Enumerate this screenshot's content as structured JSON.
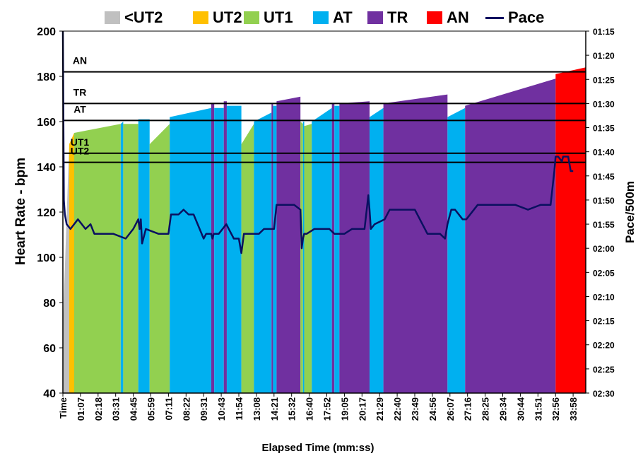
{
  "chart_data": {
    "type": "area",
    "title": "",
    "xlabel": "Elapsed Time (mm:ss)",
    "ylabel": "Heart Rate - bpm",
    "y2label": "Pace/500m",
    "ylim": [
      40,
      200
    ],
    "yticks": [
      40,
      60,
      80,
      100,
      120,
      140,
      160,
      180,
      200
    ],
    "y2ticks": [
      "01:15",
      "01:20",
      "01:25",
      "01:30",
      "01:35",
      "01:40",
      "01:45",
      "01:50",
      "01:55",
      "02:00",
      "02:05",
      "02:10",
      "02:15",
      "02:20",
      "02:25",
      "02:30"
    ],
    "y2lim_seconds": [
      75,
      150
    ],
    "xlim_seconds": [
      0,
      2080
    ],
    "xticks": [
      "Time",
      "01:07",
      "02:18",
      "03:31",
      "04:45",
      "05:59",
      "07:11",
      "08:22",
      "09:31",
      "10:43",
      "11:54",
      "13:08",
      "14:21",
      "15:32",
      "16:40",
      "17:52",
      "19:05",
      "20:17",
      "21:29",
      "22:40",
      "23:49",
      "24:56",
      "26:07",
      "27:16",
      "28:25",
      "29:34",
      "30:44",
      "31:51",
      "32:56",
      "33:58"
    ],
    "legend": [
      {
        "name": "<UT2",
        "color": "#c0c0c0",
        "kind": "area"
      },
      {
        "name": "UT2",
        "color": "#ffc000",
        "kind": "area"
      },
      {
        "name": "UT1",
        "color": "#92d050",
        "kind": "area"
      },
      {
        "name": "AT",
        "color": "#00b0f0",
        "kind": "area"
      },
      {
        "name": "TR",
        "color": "#7030a0",
        "kind": "area"
      },
      {
        "name": "AN",
        "color": "#ff0000",
        "kind": "area"
      },
      {
        "name": "Pace",
        "color": "#0a1060",
        "kind": "line"
      }
    ],
    "legend_position": "top",
    "zone_thresholds": [
      {
        "label": "UT2",
        "hr": 142
      },
      {
        "label": "UT1",
        "hr": 146
      },
      {
        "label": "AT",
        "hr": 160.5
      },
      {
        "label": "TR",
        "hr": 168
      },
      {
        "label": "AN",
        "hr": 182
      }
    ],
    "heart_rate_segments": [
      {
        "zone": "<UT2",
        "x0": 0,
        "x1": 25,
        "hr0": 70,
        "hr1": 150
      },
      {
        "zone": "UT2",
        "x0": 25,
        "x1": 45,
        "hr0": 150,
        "hr1": 155
      },
      {
        "zone": "UT1",
        "x0": 45,
        "x1": 230,
        "hr0": 155,
        "hr1": 159
      },
      {
        "zone": "AT",
        "x0": 230,
        "x1": 240,
        "hr0": 159,
        "hr1": 160
      },
      {
        "zone": "UT1",
        "x0": 240,
        "x1": 300,
        "hr0": 159,
        "hr1": 159
      },
      {
        "zone": "AT",
        "x0": 300,
        "x1": 345,
        "hr0": 161,
        "hr1": 161
      },
      {
        "zone": "UT1",
        "x0": 345,
        "x1": 425,
        "hr0": 150,
        "hr1": 159
      },
      {
        "zone": "AT",
        "x0": 425,
        "x1": 590,
        "hr0": 162,
        "hr1": 166
      },
      {
        "zone": "TR",
        "x0": 590,
        "x1": 602,
        "hr0": 168,
        "hr1": 168
      },
      {
        "zone": "AT",
        "x0": 602,
        "x1": 640,
        "hr0": 166,
        "hr1": 166
      },
      {
        "zone": "TR",
        "x0": 640,
        "x1": 652,
        "hr0": 169,
        "hr1": 169
      },
      {
        "zone": "AT",
        "x0": 652,
        "x1": 710,
        "hr0": 167,
        "hr1": 167
      },
      {
        "zone": "UT1",
        "x0": 710,
        "x1": 760,
        "hr0": 150,
        "hr1": 159
      },
      {
        "zone": "AT",
        "x0": 760,
        "x1": 830,
        "hr0": 160,
        "hr1": 164
      },
      {
        "zone": "TR",
        "x0": 830,
        "x1": 836,
        "hr0": 168,
        "hr1": 168
      },
      {
        "zone": "AT",
        "x0": 836,
        "x1": 850,
        "hr0": 167,
        "hr1": 167
      },
      {
        "zone": "TR",
        "x0": 850,
        "x1": 945,
        "hr0": 169,
        "hr1": 171
      },
      {
        "zone": "UT1",
        "x0": 945,
        "x1": 955,
        "hr0": 160,
        "hr1": 159
      },
      {
        "zone": "AT",
        "x0": 955,
        "x1": 960,
        "hr0": 160,
        "hr1": 160
      },
      {
        "zone": "UT1",
        "x0": 960,
        "x1": 990,
        "hr0": 158,
        "hr1": 159
      },
      {
        "zone": "AT",
        "x0": 990,
        "x1": 1070,
        "hr0": 160,
        "hr1": 166
      },
      {
        "zone": "TR",
        "x0": 1070,
        "x1": 1080,
        "hr0": 168,
        "hr1": 168
      },
      {
        "zone": "AT",
        "x0": 1080,
        "x1": 1100,
        "hr0": 167,
        "hr1": 167
      },
      {
        "zone": "TR",
        "x0": 1100,
        "x1": 1220,
        "hr0": 168,
        "hr1": 169
      },
      {
        "zone": "AT",
        "x0": 1220,
        "x1": 1275,
        "hr0": 162,
        "hr1": 166
      },
      {
        "zone": "TR",
        "x0": 1275,
        "x1": 1530,
        "hr0": 168,
        "hr1": 172
      },
      {
        "zone": "AT",
        "x0": 1530,
        "x1": 1600,
        "hr0": 162,
        "hr1": 166
      },
      {
        "zone": "TR",
        "x0": 1600,
        "x1": 1960,
        "hr0": 167,
        "hr1": 179
      },
      {
        "zone": "AN",
        "x0": 1960,
        "x1": 2080,
        "hr0": 181,
        "hr1": 184
      }
    ],
    "pace_seconds": {
      "x": [
        0,
        4,
        8,
        15,
        30,
        60,
        90,
        110,
        125,
        200,
        250,
        280,
        300,
        305,
        310,
        315,
        330,
        380,
        390,
        420,
        430,
        460,
        480,
        500,
        520,
        560,
        570,
        590,
        595,
        600,
        620,
        650,
        660,
        680,
        700,
        710,
        720,
        780,
        800,
        840,
        850,
        880,
        920,
        945,
        950,
        955,
        960,
        970,
        1000,
        1030,
        1060,
        1080,
        1120,
        1150,
        1200,
        1215,
        1220,
        1225,
        1240,
        1280,
        1300,
        1320,
        1400,
        1450,
        1500,
        1520,
        1530,
        1535,
        1545,
        1560,
        1590,
        1605,
        1650,
        1700,
        1750,
        1800,
        1850,
        1900,
        1940,
        1955,
        1960,
        1970,
        1985,
        1990,
        2000,
        2010,
        2020,
        2030
      ],
      "y": [
        75,
        110,
        113,
        115,
        116,
        114,
        116,
        115,
        117,
        117,
        118,
        116,
        114,
        116,
        114,
        119,
        116,
        117,
        117,
        117,
        113,
        113,
        112,
        113,
        113,
        118,
        117,
        117,
        118,
        117,
        117,
        115,
        116,
        118,
        118,
        121,
        117,
        117,
        116,
        116,
        111,
        111,
        111,
        112,
        120,
        118,
        117,
        117,
        116,
        116,
        116,
        117,
        117,
        116,
        116,
        109,
        112,
        116,
        115,
        114,
        112,
        112,
        112,
        117,
        117,
        118,
        115,
        114,
        112,
        112,
        114,
        114,
        111,
        111,
        111,
        111,
        112,
        111,
        111,
        104,
        101,
        101,
        102,
        101,
        101,
        101,
        104,
        104
      ]
    }
  }
}
